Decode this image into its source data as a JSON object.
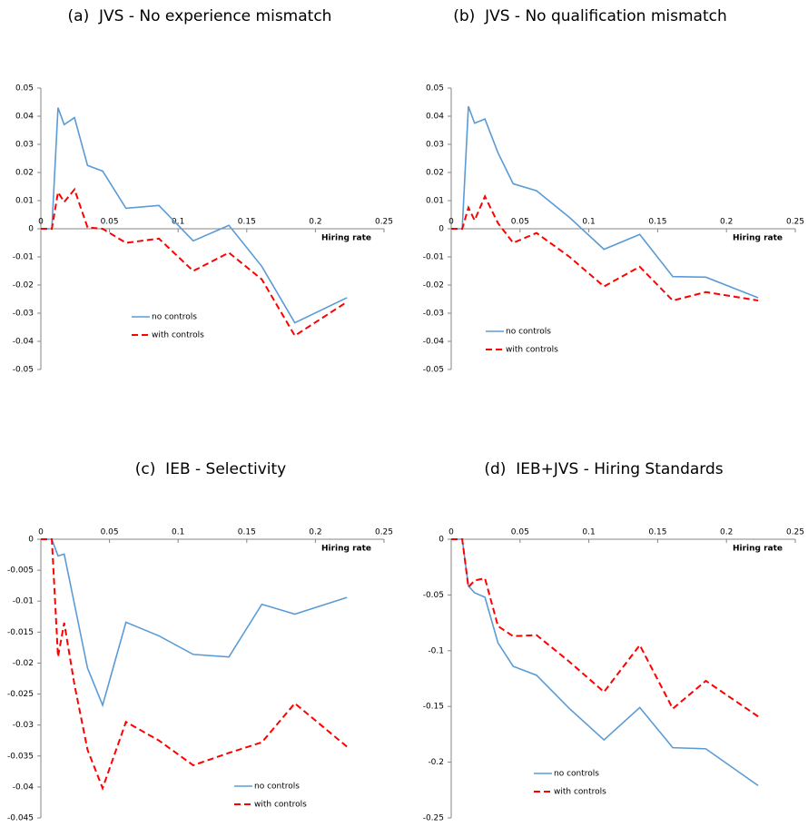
{
  "chart_data": [
    {
      "type": "line",
      "title": "(a)  JVS - No experience mismatch",
      "x_label": "Hiring rate",
      "x": [
        0,
        0.008,
        0.0125,
        0.017,
        0.0245,
        0.034,
        0.045,
        0.062,
        0.086,
        0.111,
        0.137,
        0.161,
        0.185,
        0.223
      ],
      "series": [
        {
          "name": "no controls",
          "color": "#5b9bd5",
          "style": "solid",
          "values": [
            0,
            0,
            0.043,
            0.037,
            0.0395,
            0.0225,
            0.0205,
            0.0073,
            0.0083,
            -0.0043,
            0.0012,
            -0.0134,
            -0.0334,
            -0.0245
          ]
        },
        {
          "name": "with controls",
          "color": "#ff0000",
          "style": "dashed",
          "values": [
            0,
            0,
            0.013,
            0.0095,
            0.014,
            0.0005,
            0,
            -0.005,
            -0.0035,
            -0.015,
            -0.0085,
            -0.018,
            -0.038,
            -0.026
          ]
        }
      ],
      "xlim": [
        0,
        0.25
      ],
      "xticks": [
        0,
        0.05,
        0.1,
        0.15,
        0.2,
        0.25
      ],
      "ylim": [
        -0.05,
        0.05
      ],
      "yticks": [
        0.05,
        0.04,
        0.03,
        0.02,
        0.01,
        0,
        -0.01,
        -0.02,
        -0.03,
        -0.04,
        -0.05
      ]
    },
    {
      "type": "line",
      "title": "(b)  JVS - No qualification mismatch",
      "x_label": "Hiring rate",
      "x": [
        0,
        0.008,
        0.0125,
        0.017,
        0.0245,
        0.034,
        0.045,
        0.062,
        0.086,
        0.111,
        0.137,
        0.161,
        0.185,
        0.223
      ],
      "series": [
        {
          "name": "no controls",
          "color": "#5b9bd5",
          "style": "solid",
          "values": [
            0,
            0,
            0.0435,
            0.0375,
            0.039,
            0.027,
            0.016,
            0.0135,
            0.004,
            -0.0073,
            -0.002,
            -0.017,
            -0.0172,
            -0.0245
          ]
        },
        {
          "name": "with controls",
          "color": "#ff0000",
          "style": "dashed",
          "values": [
            0,
            0,
            0.0075,
            0.003,
            0.0115,
            0.002,
            -0.005,
            -0.0015,
            -0.01,
            -0.0205,
            -0.0135,
            -0.0255,
            -0.0225,
            -0.0255
          ]
        }
      ],
      "xlim": [
        0,
        0.25
      ],
      "xticks": [
        0,
        0.05,
        0.1,
        0.15,
        0.2,
        0.25
      ],
      "ylim": [
        -0.05,
        0.05
      ],
      "yticks": [
        0.05,
        0.04,
        0.03,
        0.02,
        0.01,
        0,
        -0.01,
        -0.02,
        -0.03,
        -0.04,
        -0.05
      ]
    },
    {
      "type": "line",
      "title": "(c)  IEB - Selectivity",
      "x_label": "Hiring rate",
      "x": [
        0,
        0.008,
        0.0125,
        0.017,
        0.0245,
        0.034,
        0.045,
        0.062,
        0.086,
        0.111,
        0.137,
        0.161,
        0.185,
        0.223
      ],
      "series": [
        {
          "name": "no controls",
          "color": "#5b9bd5",
          "style": "solid",
          "values": [
            0,
            0,
            -0.0027,
            -0.0024,
            -0.0105,
            -0.0208,
            -0.0268,
            -0.0134,
            -0.0156,
            -0.0186,
            -0.019,
            -0.0105,
            -0.0121,
            -0.0094
          ]
        },
        {
          "name": "with controls",
          "color": "#ff0000",
          "style": "dashed",
          "values": [
            0,
            0,
            -0.019,
            -0.0135,
            -0.0235,
            -0.034,
            -0.0402,
            -0.0295,
            -0.0325,
            -0.0365,
            -0.0345,
            -0.0328,
            -0.0265,
            -0.0335
          ]
        }
      ],
      "xlim": [
        0,
        0.25
      ],
      "xticks": [
        0,
        0.05,
        0.1,
        0.15,
        0.2,
        0.25
      ],
      "ylim": [
        -0.045,
        0
      ],
      "yticks": [
        0,
        -0.005,
        -0.01,
        -0.015,
        -0.02,
        -0.025,
        -0.03,
        -0.035,
        -0.04,
        -0.045
      ]
    },
    {
      "type": "line",
      "title": "(d)  IEB+JVS - Hiring Standards",
      "x_label": "Hiring rate",
      "x": [
        0,
        0.008,
        0.0125,
        0.017,
        0.0245,
        0.034,
        0.045,
        0.062,
        0.086,
        0.111,
        0.137,
        0.161,
        0.185,
        0.223
      ],
      "series": [
        {
          "name": "no controls",
          "color": "#5b9bd5",
          "style": "solid",
          "values": [
            0,
            0,
            -0.042,
            -0.048,
            -0.052,
            -0.093,
            -0.114,
            -0.122,
            -0.152,
            -0.18,
            -0.151,
            -0.187,
            -0.188,
            -0.221
          ]
        },
        {
          "name": "with controls",
          "color": "#ff0000",
          "style": "dashed",
          "values": [
            0,
            0,
            -0.043,
            -0.037,
            -0.035,
            -0.078,
            -0.087,
            -0.086,
            -0.11,
            -0.137,
            -0.095,
            -0.152,
            -0.127,
            -0.159
          ]
        }
      ],
      "xlim": [
        0,
        0.25
      ],
      "xticks": [
        0,
        0.05,
        0.1,
        0.15,
        0.2,
        0.25
      ],
      "ylim": [
        -0.25,
        0
      ],
      "yticks": [
        0,
        -0.05,
        -0.1,
        -0.15,
        -0.2,
        -0.25
      ]
    }
  ]
}
